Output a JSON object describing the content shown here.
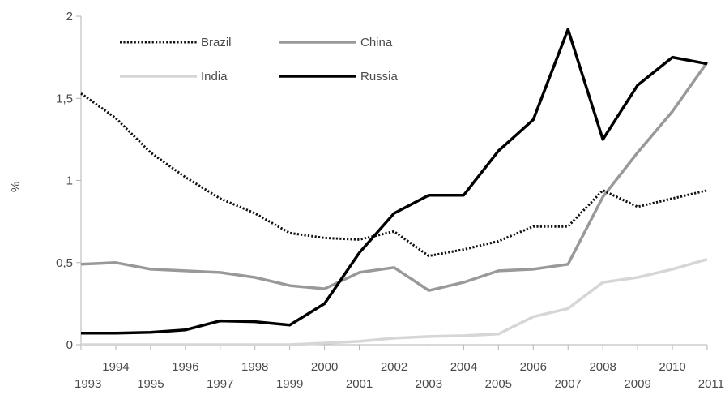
{
  "chart_data": {
    "type": "line",
    "title": "",
    "xlabel": "",
    "ylabel": "%",
    "x": [
      1993,
      1994,
      1995,
      1996,
      1997,
      1998,
      1999,
      2000,
      2001,
      2002,
      2003,
      2004,
      2005,
      2006,
      2007,
      2008,
      2009,
      2010,
      2011
    ],
    "x_tick_labels": [
      "1993",
      "1994",
      "1995",
      "1996",
      "1997",
      "1998",
      "1999",
      "2000",
      "2001",
      "2002",
      "2003",
      "2004",
      "2005",
      "2006",
      "2007",
      "2008",
      "2009",
      "2010",
      "2011"
    ],
    "ylim": [
      0,
      2
    ],
    "y_ticks": [
      0,
      0.5,
      1,
      1.5,
      2
    ],
    "y_tick_labels": [
      "0",
      "0,5",
      "1",
      "1,5",
      "2"
    ],
    "grid": false,
    "legend_position": "top-left",
    "series": [
      {
        "name": "Brazil",
        "style": "dotted",
        "color": "#111111",
        "values": [
          1.53,
          1.38,
          1.17,
          1.02,
          0.89,
          0.8,
          0.68,
          0.65,
          0.64,
          0.69,
          0.54,
          0.58,
          0.63,
          0.72,
          0.72,
          0.94,
          0.84,
          0.89,
          0.94
        ]
      },
      {
        "name": "China",
        "style": "solid",
        "color": "#999999",
        "values": [
          0.49,
          0.5,
          0.46,
          0.45,
          0.44,
          0.41,
          0.36,
          0.34,
          0.44,
          0.47,
          0.33,
          0.38,
          0.45,
          0.46,
          0.49,
          0.9,
          1.17,
          1.42,
          1.72
        ]
      },
      {
        "name": "India",
        "style": "solid",
        "color": "#d6d6d6",
        "values": [
          0.0,
          0.0,
          0.0,
          0.0,
          0.0,
          0.0,
          0.0,
          0.01,
          0.02,
          0.04,
          0.05,
          0.055,
          0.065,
          0.17,
          0.22,
          0.38,
          0.41,
          0.46,
          0.52
        ]
      },
      {
        "name": "Russia",
        "style": "solid",
        "color": "#000000",
        "values": [
          0.07,
          0.07,
          0.075,
          0.09,
          0.145,
          0.14,
          0.12,
          0.25,
          0.56,
          0.8,
          0.91,
          0.91,
          1.18,
          1.37,
          1.92,
          1.25,
          1.58,
          1.75,
          1.71
        ]
      }
    ]
  }
}
